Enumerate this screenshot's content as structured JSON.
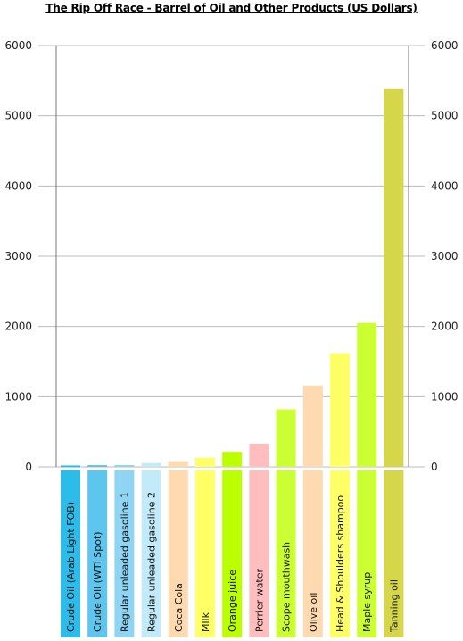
{
  "chart_data": {
    "type": "bar",
    "title": "The Rip Off Race - Barrel of Oil and Other Products (US Dollars)",
    "xlabel": "",
    "ylabel": "",
    "ylim": [
      0,
      6000
    ],
    "yticks": [
      0,
      1000,
      2000,
      3000,
      4000,
      5000,
      6000
    ],
    "grid": true,
    "categories": [
      "Crude Oil (Arab Light FOB)",
      "Crude Oil (WTI Spot)",
      "Regular unleaded gasoline 1",
      "Regular unleaded gasoline 2",
      "Coca Cola",
      "Milk",
      "Orange juice",
      "Perrier water",
      "Scope mouthwash",
      "Olive oil",
      "Head & Shoulders shampoo",
      "Maple syrup",
      "Tanning oil"
    ],
    "values": [
      20,
      25,
      25,
      55,
      80,
      130,
      215,
      330,
      820,
      1160,
      1620,
      2050,
      5380
    ],
    "colors": [
      "#2bbcea",
      "#5ec6ee",
      "#8fd4f2",
      "#c2eaf9",
      "#ffd9b0",
      "#ffff66",
      "#bbff00",
      "#ffbdbd",
      "#ccff33",
      "#ffd9b0",
      "#ffff66",
      "#ccff33",
      "#d6d64a"
    ]
  }
}
